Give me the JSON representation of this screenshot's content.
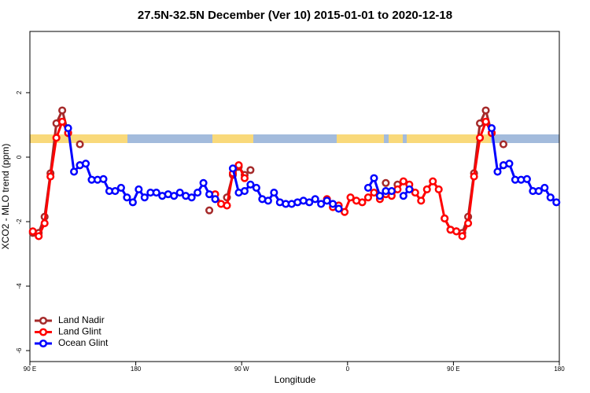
{
  "chart_data": {
    "type": "line",
    "title": "27.5N-32.5N December (Ver 10)   2015-01-01 to 2020-12-18",
    "xlabel": "Longitude",
    "ylabel": "XCO2 - MLO trend (ppm)",
    "xlim": [
      90,
      540
    ],
    "ylim": [
      -6.34,
      3.9
    ],
    "xticks": [
      {
        "value": 90,
        "label": "90 E"
      },
      180,
      {
        "value": 270,
        "label": "90 W"
      },
      {
        "value": 360,
        "label": "0"
      },
      {
        "value": 450,
        "label": "90 E"
      },
      {
        "value": 540,
        "label": "180"
      }
    ],
    "yticks": [
      -6,
      -4,
      -2,
      0,
      2
    ],
    "legend": "bottom-left",
    "x": [
      92.5,
      97.5,
      102.5,
      107.5,
      112.5,
      117.5,
      122.5,
      127.5,
      132.5,
      137.5,
      142.5,
      147.5,
      152.5,
      157.5,
      162.5,
      167.5,
      172.5,
      177.5,
      182.5,
      187.5,
      192.5,
      197.5,
      202.5,
      207.5,
      212.5,
      217.5,
      222.5,
      227.5,
      232.5,
      237.5,
      242.5,
      247.5,
      252.5,
      257.5,
      262.5,
      267.5,
      272.5,
      277.5,
      282.5,
      287.5,
      292.5,
      297.5,
      302.5,
      307.5,
      312.5,
      317.5,
      322.5,
      327.5,
      332.5,
      337.5,
      342.5,
      347.5,
      352.5,
      357.5,
      362.5,
      367.5,
      372.5,
      377.5,
      382.5,
      387.5,
      392.5,
      397.5,
      402.5,
      407.5,
      412.5,
      417.5,
      422.5,
      427.5,
      432.5,
      437.5,
      442.5,
      447.5,
      452.5,
      457.5,
      462.5,
      467.5,
      472.5,
      477.5,
      482.5,
      487.5,
      492.5,
      497.5,
      502.5,
      507.5,
      512.5,
      517.5,
      522.5,
      527.5,
      532.5,
      537.5
    ],
    "series": [
      {
        "name": "Land Nadir",
        "color": "#a52a2a",
        "values": [
          -2.35,
          -2.35,
          -1.85,
          -0.5,
          1.05,
          1.45,
          0.75,
          null,
          0.4,
          null,
          null,
          null,
          null,
          null,
          null,
          null,
          null,
          null,
          null,
          null,
          null,
          null,
          null,
          null,
          null,
          null,
          null,
          null,
          null,
          null,
          -1.65,
          null,
          null,
          -1.25,
          -0.55,
          -0.3,
          -0.55,
          -0.4,
          null,
          null,
          null,
          null,
          null,
          null,
          null,
          null,
          null,
          null,
          null,
          null,
          null,
          null,
          null,
          null,
          null,
          null,
          null,
          null,
          null,
          null,
          -0.8,
          null,
          -0.85,
          null,
          null,
          null,
          null,
          null,
          null,
          null,
          -1.9,
          -2.25,
          -2.3,
          -2.35,
          -1.85,
          -0.5,
          1.05,
          1.45,
          0.75,
          null,
          0.4,
          null,
          null,
          null,
          null,
          null,
          null,
          null,
          null,
          null
        ]
      },
      {
        "name": "Land Glint",
        "color": "#ff0000",
        "values": [
          -2.3,
          -2.45,
          -2.05,
          -0.6,
          0.6,
          1.1,
          0.75,
          null,
          -0.25,
          null,
          null,
          null,
          null,
          null,
          null,
          null,
          null,
          null,
          null,
          null,
          null,
          null,
          null,
          null,
          null,
          null,
          null,
          null,
          null,
          null,
          null,
          -1.15,
          -1.45,
          -1.5,
          -0.5,
          -0.25,
          -0.65,
          null,
          null,
          null,
          null,
          null,
          null,
          null,
          null,
          null,
          null,
          null,
          null,
          null,
          -1.3,
          -1.55,
          -1.5,
          -1.7,
          -1.25,
          -1.35,
          -1.4,
          -1.25,
          -1.1,
          -1.3,
          -1.15,
          -1.2,
          -1.0,
          -0.75,
          -0.85,
          -1.1,
          -1.35,
          -1.0,
          -0.75,
          -1.0,
          -1.9,
          -2.25,
          -2.3,
          -2.45,
          -2.05,
          -0.6,
          0.6,
          1.1,
          0.75,
          null,
          -0.25,
          null,
          null,
          null,
          null,
          null,
          null,
          null,
          null,
          null
        ]
      },
      {
        "name": "Ocean Glint",
        "color": "#0000ff",
        "values": [
          null,
          null,
          null,
          null,
          null,
          null,
          0.9,
          -0.45,
          -0.25,
          -0.2,
          -0.7,
          -0.7,
          -0.68,
          -1.05,
          -1.05,
          -0.95,
          -1.25,
          -1.4,
          -1.0,
          -1.25,
          -1.1,
          -1.1,
          -1.2,
          -1.15,
          -1.2,
          -1.1,
          -1.2,
          -1.25,
          -1.1,
          -0.8,
          -1.15,
          -1.3,
          null,
          null,
          -0.35,
          -1.1,
          -1.05,
          -0.85,
          -0.95,
          -1.3,
          -1.35,
          -1.1,
          -1.4,
          -1.45,
          -1.45,
          -1.4,
          -1.35,
          -1.4,
          -1.3,
          -1.45,
          -1.35,
          -1.45,
          -1.6,
          null,
          null,
          null,
          null,
          -0.95,
          -0.65,
          -1.2,
          -1.05,
          -1.05,
          null,
          -1.2,
          -1.0,
          null,
          null,
          null,
          null,
          null,
          null,
          null,
          null,
          null,
          null,
          null,
          null,
          null,
          0.9,
          -0.45,
          -0.25,
          -0.2,
          -0.7,
          -0.7,
          -0.68,
          -1.05,
          -1.05,
          -0.95,
          -1.25,
          -1.4
        ]
      }
    ]
  }
}
